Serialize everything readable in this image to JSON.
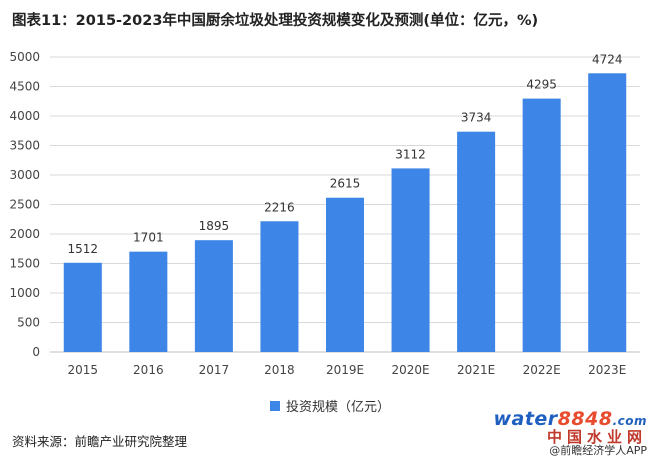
{
  "title": "图表11：2015-2023年中国厨余垃圾处理投资规模变化及预测(单位：亿元，%)",
  "source": "资料来源：前瞻产业研究院整理",
  "watermark": {
    "logo_text_a": "water",
    "logo_text_b": "8848",
    "logo_suffix": ".com",
    "logo_cn": "中国水业网",
    "credit": "@前瞻经济学人APP"
  },
  "colors": {
    "bar": "#3d85e6",
    "grid": "#d9d9d9",
    "axis": "#bfbfbf"
  },
  "chart_data": {
    "type": "bar",
    "categories": [
      "2015",
      "2016",
      "2017",
      "2018",
      "2019E",
      "2020E",
      "2021E",
      "2022E",
      "2023E"
    ],
    "series": [
      {
        "name": "投资规模（亿元）",
        "values": [
          1512,
          1701,
          1895,
          2216,
          2615,
          3112,
          3734,
          4295,
          4724
        ]
      }
    ],
    "ylim": [
      0,
      5000
    ],
    "yticks": [
      0,
      500,
      1000,
      1500,
      2000,
      2500,
      3000,
      3500,
      4000,
      4500,
      5000
    ],
    "grid": true,
    "legend": "bottom",
    "data_labels": true
  }
}
